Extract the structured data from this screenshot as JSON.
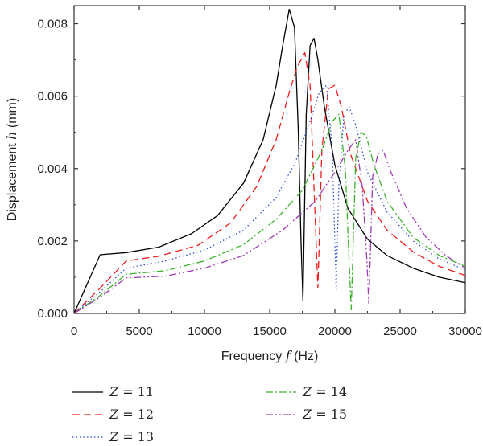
{
  "chart_data": {
    "type": "line",
    "xlabel": {
      "prefix": "Frequency ",
      "var": "f",
      "unit": " (Hz)"
    },
    "ylabel": {
      "prefix": "Displacement ",
      "var": "h",
      "unit": " (mm)"
    },
    "xlim": [
      0,
      30000
    ],
    "ylim": [
      0,
      0.0085
    ],
    "xticks": [
      0,
      5000,
      10000,
      15000,
      20000,
      25000,
      30000
    ],
    "yticks": [
      0,
      0.002,
      0.004,
      0.006,
      0.008
    ],
    "xtick_labels": [
      "0",
      "5000",
      "10000",
      "15000",
      "20000",
      "25000",
      "30000"
    ],
    "ytick_labels": [
      "0.000",
      "0.002",
      "0.004",
      "0.006",
      "0.008"
    ],
    "grid": false,
    "legend_position": "bottom",
    "series": [
      {
        "name": "Z = 11",
        "var": "Z",
        "value_text": " = 11",
        "color": "#000000",
        "style": "solid",
        "x": [
          0,
          2000,
          4000,
          6500,
          9000,
          11000,
          13000,
          14500,
          15500,
          16000,
          16500,
          16900,
          17200,
          17400,
          17550,
          17800,
          18100,
          18400,
          18700,
          19200,
          20000,
          21000,
          22500,
          24000,
          26000,
          28000,
          30000
        ],
        "y": [
          0,
          0.00162,
          0.00168,
          0.00183,
          0.0022,
          0.0027,
          0.0036,
          0.0048,
          0.0063,
          0.0074,
          0.0084,
          0.0079,
          0.005,
          0.002,
          0.00035,
          0.0055,
          0.0074,
          0.0076,
          0.007,
          0.0057,
          0.0041,
          0.0029,
          0.00205,
          0.0016,
          0.00125,
          0.001,
          0.00085
        ]
      },
      {
        "name": "Z = 12",
        "var": "Z",
        "value_text": " = 12",
        "color": "#ee1c1c",
        "style": "dashed",
        "x": [
          0,
          2000,
          4000,
          6500,
          9500,
          12000,
          14000,
          15500,
          16500,
          17100,
          17700,
          18100,
          18450,
          18700,
          19000,
          19500,
          20000,
          20500,
          21200,
          22500,
          24000,
          26000,
          28000,
          30000
        ],
        "y": [
          0,
          0.0007,
          0.00145,
          0.00158,
          0.00188,
          0.0025,
          0.0035,
          0.0048,
          0.0061,
          0.0068,
          0.0072,
          0.0063,
          0.003,
          0.0007,
          0.0045,
          0.0062,
          0.0063,
          0.0057,
          0.0044,
          0.0031,
          0.0023,
          0.0017,
          0.0013,
          0.00105
        ]
      },
      {
        "name": "Z = 13",
        "var": "Z",
        "value_text": " = 13",
        "color": "#2f4fd8",
        "style": "dotted",
        "x": [
          0,
          2000,
          4000,
          7000,
          10000,
          13000,
          15500,
          17000,
          18000,
          18800,
          19350,
          19800,
          20100,
          20300,
          20700,
          21100,
          21600,
          22500,
          24000,
          26000,
          28000,
          30000
        ],
        "y": [
          0,
          0.0006,
          0.00125,
          0.00145,
          0.00175,
          0.0023,
          0.0032,
          0.0042,
          0.0052,
          0.0061,
          0.0063,
          0.0045,
          0.00065,
          0.0035,
          0.0055,
          0.0057,
          0.0052,
          0.0039,
          0.0028,
          0.002,
          0.0015,
          0.0012
        ]
      },
      {
        "name": "Z = 14",
        "var": "Z",
        "value_text": " = 14",
        "color": "#3db12d",
        "style": "dashdot",
        "x": [
          0,
          2000,
          4000,
          7000,
          10000,
          13000,
          15500,
          17500,
          19000,
          19800,
          20300,
          20800,
          21050,
          21250,
          21600,
          22000,
          22400,
          23000,
          24000,
          26000,
          28000,
          30000
        ],
        "y": [
          0,
          0.0005,
          0.00108,
          0.00118,
          0.00145,
          0.0019,
          0.0026,
          0.0034,
          0.0045,
          0.0053,
          0.0055,
          0.004,
          0.0018,
          0.0001,
          0.0043,
          0.005,
          0.0049,
          0.0041,
          0.0031,
          0.0021,
          0.0016,
          0.0013
        ]
      },
      {
        "name": "Z = 15",
        "var": "Z",
        "value_text": " = 15",
        "color": "#9e3cb4",
        "style": "dashdotdot",
        "x": [
          0,
          2000,
          4000,
          7000,
          10000,
          13000,
          16000,
          18500,
          20000,
          21000,
          21600,
          22100,
          22450,
          22600,
          22900,
          23300,
          23700,
          24300,
          25500,
          27000,
          28500,
          30000
        ],
        "y": [
          0,
          0.00045,
          0.00098,
          0.00103,
          0.00125,
          0.0016,
          0.0023,
          0.0031,
          0.0039,
          0.0045,
          0.0048,
          0.0035,
          0.0015,
          0.00025,
          0.0038,
          0.0044,
          0.0045,
          0.0039,
          0.0029,
          0.0021,
          0.0016,
          0.00125
        ]
      }
    ]
  }
}
